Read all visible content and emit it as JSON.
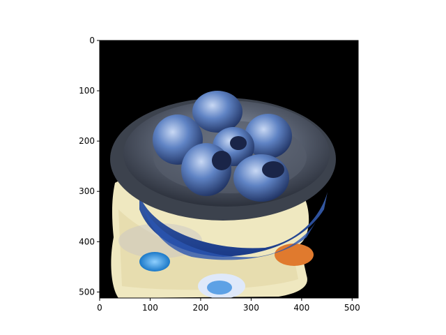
{
  "figure": {
    "background": "#ffffff",
    "axes_color": "#000000",
    "x_axis": {
      "ticks": [
        0,
        100,
        200,
        300,
        400,
        500
      ],
      "tick_labels": [
        "0",
        "100",
        "200",
        "300",
        "400",
        "500"
      ],
      "range": [
        0,
        512
      ]
    },
    "y_axis": {
      "ticks": [
        0,
        100,
        200,
        300,
        400,
        500
      ],
      "tick_labels": [
        "0",
        "100",
        "200",
        "300",
        "400",
        "500"
      ],
      "range": [
        0,
        512
      ],
      "inverted": true
    }
  },
  "image": {
    "description_colors": {
      "background": "#000000",
      "plate": "#4f5766",
      "shells": "#5d7fbf",
      "stand": "#f2ecc6",
      "accent_orange": "#e07a2e",
      "accent_blue": "#1f8fd6"
    }
  }
}
